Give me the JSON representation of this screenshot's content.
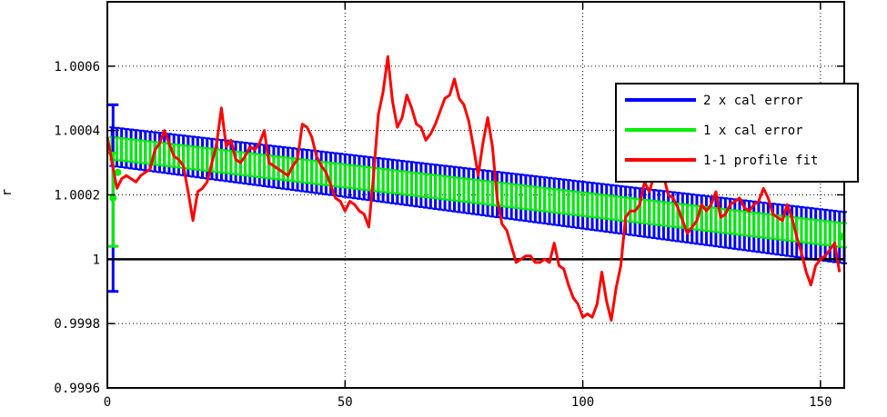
{
  "chart_data": {
    "type": "line",
    "ylabel": "r",
    "xlim": [
      0,
      155
    ],
    "ylim": [
      0.9996,
      1.0008
    ],
    "x_ticks": [
      0,
      50,
      100,
      150
    ],
    "y_ticks": [
      0.9996,
      0.9998,
      1,
      1.0002,
      1.0004,
      1.0006
    ],
    "x_tick_labels": [
      "0",
      "50",
      "100",
      "150"
    ],
    "y_tick_labels": [
      "0.9996",
      "0.9998",
      "1",
      "1.0002",
      "1.0004",
      "1.0006"
    ],
    "grid": true,
    "legend_position": "top-right",
    "reference_line": 1.0,
    "series": [
      {
        "name": "2 x cal error",
        "color": "#0000ff",
        "type": "band",
        "x": [
          1,
          155
        ],
        "upper": [
          1.00041,
          1.000147
        ],
        "lower": [
          1.00029,
          0.999987
        ]
      },
      {
        "name": "1 x cal error",
        "color": "#00ee00",
        "type": "band",
        "x": [
          1,
          155
        ],
        "upper": [
          1.00038,
          1.000112
        ],
        "lower": [
          1.00031,
          1.000037
        ]
      },
      {
        "name": "1-1 profile fit",
        "color": "#ff0000",
        "type": "line",
        "x": [
          0,
          1,
          2,
          3,
          4,
          5,
          6,
          7,
          8,
          9,
          10,
          11,
          12,
          13,
          14,
          15,
          16,
          17,
          18,
          19,
          20,
          21,
          22,
          23,
          24,
          25,
          26,
          27,
          28,
          29,
          30,
          31,
          32,
          33,
          34,
          35,
          36,
          37,
          38,
          39,
          40,
          41,
          42,
          43,
          44,
          45,
          46,
          47,
          48,
          49,
          50,
          51,
          52,
          53,
          54,
          55,
          56,
          57,
          58,
          59,
          60,
          61,
          62,
          63,
          64,
          65,
          66,
          67,
          68,
          69,
          70,
          71,
          72,
          73,
          74,
          75,
          76,
          77,
          78,
          79,
          80,
          81,
          82,
          83,
          84,
          85,
          86,
          87,
          88,
          89,
          90,
          91,
          92,
          93,
          94,
          95,
          96,
          97,
          98,
          99,
          100,
          101,
          102,
          103,
          104,
          105,
          106,
          107,
          108,
          109,
          110,
          111,
          112,
          113,
          114,
          115,
          116,
          117,
          118,
          119,
          120,
          121,
          122,
          123,
          124,
          125,
          126,
          127,
          128,
          129,
          130,
          131,
          132,
          133,
          134,
          135,
          136,
          137,
          138,
          139,
          140,
          141,
          142,
          143,
          144,
          145,
          146,
          147,
          148,
          149,
          150,
          151,
          152,
          153,
          154
        ],
        "y": [
          1.00038,
          1.0003,
          1.00022,
          1.00025,
          1.00026,
          1.00025,
          1.00024,
          1.00026,
          1.00027,
          1.00028,
          1.00034,
          1.00036,
          1.0004,
          1.00036,
          1.00032,
          1.00031,
          1.00029,
          1.00021,
          1.00012,
          1.00021,
          1.00022,
          1.00024,
          1.0003,
          1.00036,
          1.00047,
          1.00035,
          1.00037,
          1.00031,
          1.0003,
          1.00032,
          1.00035,
          1.00034,
          1.00036,
          1.0004,
          1.0003,
          1.00029,
          1.00028,
          1.00027,
          1.00026,
          1.00029,
          1.00031,
          1.00042,
          1.00041,
          1.00038,
          1.00032,
          1.00029,
          1.00027,
          1.00023,
          1.00019,
          1.00018,
          1.00015,
          1.00018,
          1.00017,
          1.00015,
          1.00014,
          1.0001,
          1.00026,
          1.00045,
          1.00052,
          1.00063,
          1.00049,
          1.00041,
          1.00044,
          1.00051,
          1.00047,
          1.00042,
          1.00041,
          1.00037,
          1.00039,
          1.00042,
          1.00046,
          1.0005,
          1.00051,
          1.00056,
          1.0005,
          1.00048,
          1.00043,
          1.00035,
          1.00026,
          1.00036,
          1.00044,
          1.00035,
          1.00019,
          1.00011,
          1.00009,
          1.00004,
          0.99999,
          1.0,
          1.00001,
          1.00001,
          0.99999,
          0.99999,
          1.0,
          0.99999,
          1.00005,
          0.99998,
          0.99997,
          0.99992,
          0.99988,
          0.99986,
          0.99982,
          0.99983,
          0.99982,
          0.99986,
          0.99996,
          0.99987,
          0.99981,
          0.99991,
          0.99998,
          1.00013,
          1.00015,
          1.00015,
          1.00017,
          1.00024,
          1.00021,
          1.00026,
          1.00031,
          1.00026,
          1.0002,
          1.00019,
          1.00016,
          1.00012,
          1.00008,
          1.0001,
          1.00012,
          1.00017,
          1.00015,
          1.00017,
          1.00021,
          1.00013,
          1.00014,
          1.00017,
          1.00018,
          1.00019,
          1.00016,
          1.00015,
          1.00017,
          1.00018,
          1.00022,
          1.00019,
          1.00014,
          1.00013,
          1.00012,
          1.00017,
          1.00013,
          1.00007,
          1.00002,
          0.99996,
          0.99992,
          0.99998,
          1.0,
          1.00001,
          1.00003,
          1.00005,
          0.99996
        ]
      }
    ]
  }
}
